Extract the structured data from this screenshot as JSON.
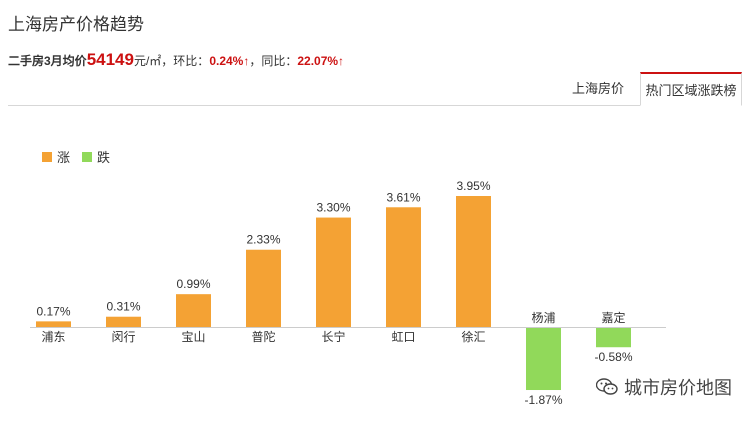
{
  "header": {
    "title": "上海房产价格趋势",
    "summary": {
      "prefix": "二手房3月均价",
      "price": "54149",
      "unit": "元/㎡，环比：",
      "mom": "0.24%↑",
      "yoy_label": "，同比：",
      "yoy": "22.07%↑"
    }
  },
  "tabs": {
    "tab1": "上海房价",
    "tab2": "热门区域涨跌榜"
  },
  "legend": {
    "rise": "涨",
    "fall": "跌"
  },
  "colors": {
    "rise": "#f4a234",
    "fall": "#91d95a",
    "accent": "#cc1111"
  },
  "watermark": "城市房价地图",
  "chart_data": {
    "type": "bar",
    "categories": [
      "浦东",
      "闵行",
      "宝山",
      "普陀",
      "长宁",
      "虹口",
      "徐汇",
      "杨浦",
      "嘉定"
    ],
    "values": [
      0.17,
      0.31,
      0.99,
      2.33,
      3.3,
      3.61,
      3.95,
      -1.87,
      -0.58
    ],
    "labels": [
      "0.17%",
      "0.31%",
      "0.99%",
      "2.33%",
      "3.30%",
      "3.61%",
      "3.95%",
      "-1.87%",
      "-0.58%"
    ],
    "series": [
      {
        "name": "涨"
      },
      {
        "name": "跌"
      }
    ],
    "legend": "top-left",
    "grid": false
  }
}
